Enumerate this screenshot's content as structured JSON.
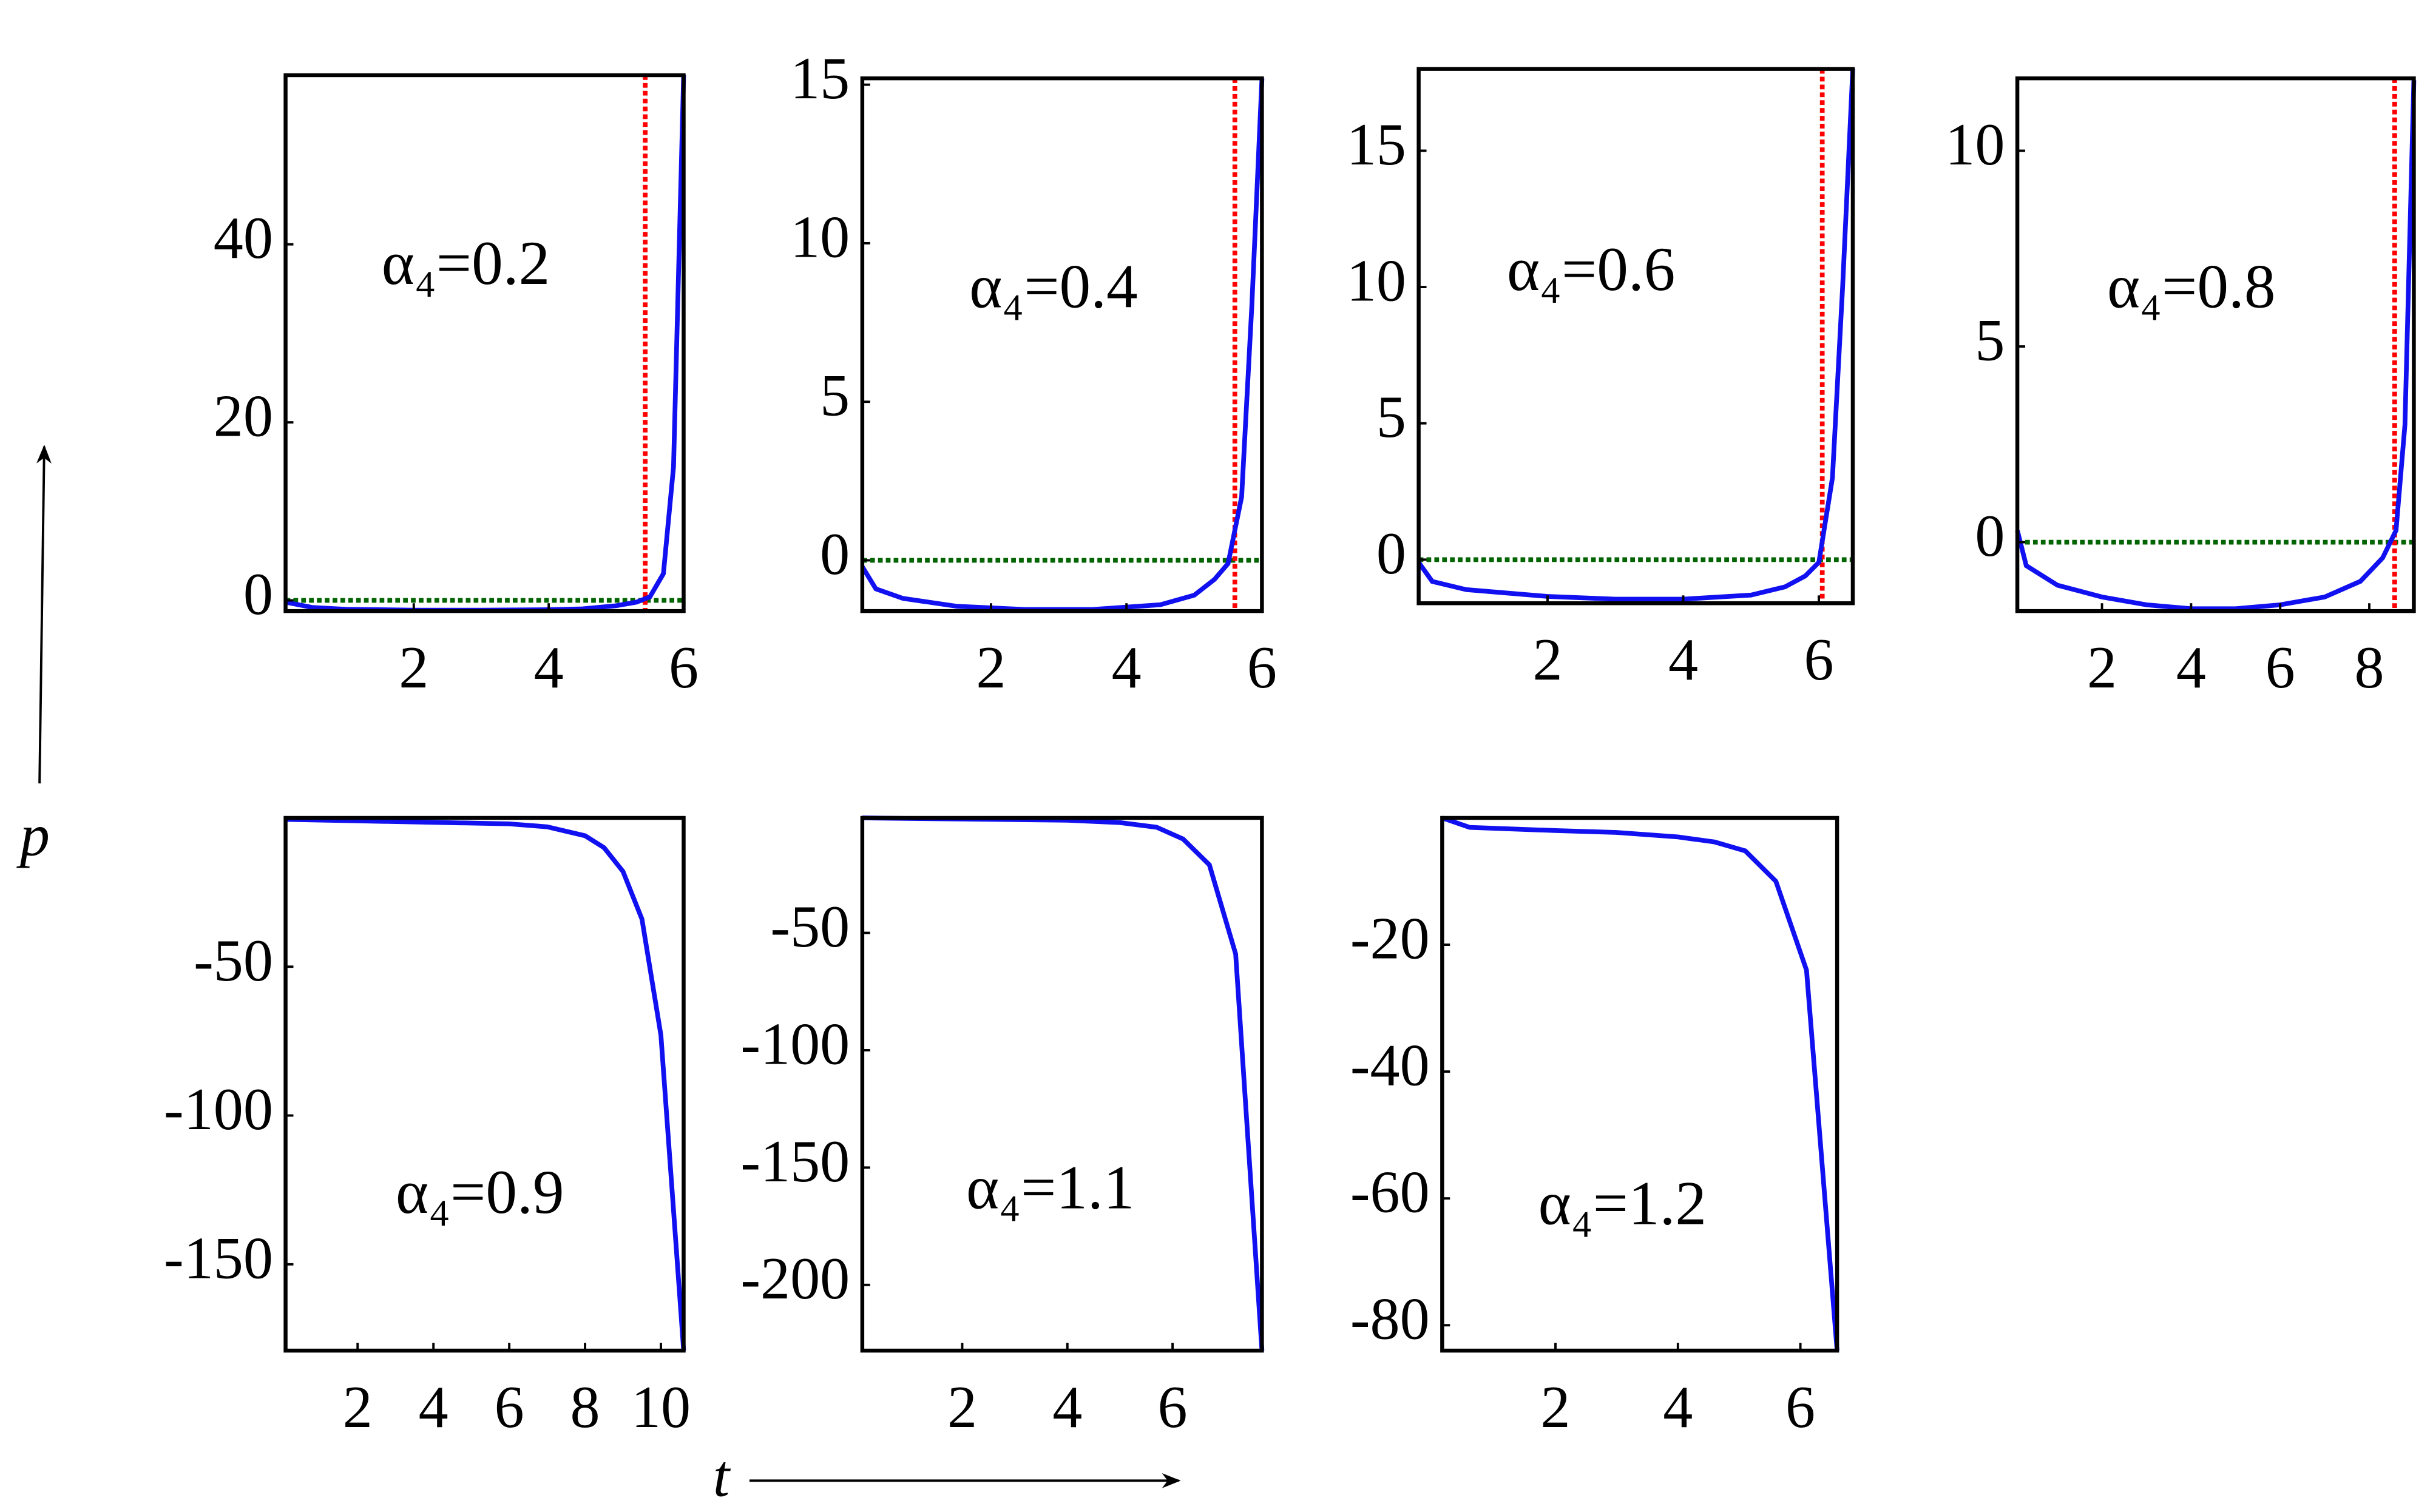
{
  "x_label": "t",
  "y_label": "p",
  "chart_data": [
    {
      "type": "line",
      "annotation": "α₄=0.2",
      "xlim": [
        0.1,
        6
      ],
      "ylim": [
        -1.2,
        59
      ],
      "xticks": [
        2,
        4,
        6
      ],
      "yticks": [
        0,
        20,
        40
      ],
      "series": [
        {
          "color": "#1010f0",
          "x": [
            0.1,
            0.5,
            1,
            2,
            3,
            4,
            4.5,
            5,
            5.3,
            5.5,
            5.7,
            5.85,
            6
          ],
          "values": [
            -0.2,
            -0.8,
            -1,
            -1.1,
            -1.1,
            -1.05,
            -0.95,
            -0.6,
            -0.2,
            0.4,
            3,
            15,
            59
          ]
        }
      ],
      "vline": {
        "x": 5.43,
        "color": "#ff0000"
      },
      "hline": {
        "y": 0,
        "color": "#006400"
      }
    },
    {
      "type": "line",
      "annotation": "α₄=0.4",
      "xlim": [
        0.1,
        6
      ],
      "ylim": [
        -1.6,
        15.2
      ],
      "xticks": [
        2,
        4,
        6
      ],
      "yticks": [
        0,
        5,
        10,
        15
      ],
      "series": [
        {
          "color": "#1010f0",
          "x": [
            0.1,
            0.3,
            0.7,
            1.5,
            2.5,
            3.5,
            4.5,
            5,
            5.3,
            5.5,
            5.7,
            5.85,
            6
          ],
          "values": [
            -0.2,
            -0.9,
            -1.2,
            -1.45,
            -1.55,
            -1.55,
            -1.4,
            -1.1,
            -0.6,
            -0.1,
            2,
            8,
            15.2
          ]
        }
      ],
      "vline": {
        "x": 5.6,
        "color": "#ff0000"
      },
      "hline": {
        "y": 0,
        "color": "#006400"
      }
    },
    {
      "type": "line",
      "annotation": "α₄=0.6",
      "xlim": [
        0.1,
        6.5
      ],
      "ylim": [
        -1.6,
        18
      ],
      "xticks": [
        2,
        4,
        6
      ],
      "yticks": [
        0,
        5,
        10,
        15
      ],
      "series": [
        {
          "color": "#1010f0",
          "x": [
            0.1,
            0.3,
            0.8,
            2,
            3,
            4,
            5,
            5.5,
            5.8,
            6,
            6.2,
            6.35,
            6.5
          ],
          "values": [
            -0.1,
            -0.8,
            -1.1,
            -1.35,
            -1.45,
            -1.45,
            -1.3,
            -1,
            -0.6,
            -0.1,
            3,
            10,
            18
          ]
        }
      ],
      "vline": {
        "x": 6.05,
        "color": "#ff0000"
      },
      "hline": {
        "y": 0,
        "color": "#006400"
      }
    },
    {
      "type": "line",
      "annotation": "α₄=0.8",
      "xlim": [
        0.1,
        9
      ],
      "ylim": [
        -1.76,
        11.85
      ],
      "xticks": [
        2,
        4,
        6,
        8
      ],
      "yticks": [
        0,
        5,
        10
      ],
      "series": [
        {
          "color": "#1010f0",
          "x": [
            0.1,
            0.3,
            1,
            2,
            3,
            4,
            5,
            6,
            7,
            7.8,
            8.3,
            8.6,
            8.8,
            9
          ],
          "values": [
            0.3,
            -0.6,
            -1.1,
            -1.4,
            -1.6,
            -1.7,
            -1.7,
            -1.6,
            -1.4,
            -1,
            -0.4,
            0.3,
            3,
            11.8
          ]
        }
      ],
      "vline": {
        "x": 8.57,
        "color": "#ff0000"
      },
      "hline": {
        "y": 0,
        "color": "#006400"
      }
    },
    {
      "type": "line",
      "annotation": "α₄=0.9",
      "xlim": [
        0.1,
        10.6
      ],
      "ylim": [
        -179,
        0
      ],
      "xticks": [
        2,
        4,
        6,
        8,
        10
      ],
      "yticks": [
        -50,
        -100,
        -150
      ],
      "series": [
        {
          "color": "#1010f0",
          "x": [
            0.1,
            2,
            4,
            6,
            7,
            8,
            8.5,
            9,
            9.5,
            10,
            10.6
          ],
          "values": [
            -0.5,
            -1,
            -1.5,
            -2,
            -3,
            -6,
            -10,
            -18,
            -34,
            -73,
            -179
          ]
        }
      ]
    },
    {
      "type": "line",
      "annotation": "α₄=1.1",
      "xlim": [
        0.1,
        7.7
      ],
      "ylim": [
        -228,
        -1
      ],
      "xticks": [
        2,
        4,
        6
      ],
      "yticks": [
        -50,
        -100,
        -150,
        -200
      ],
      "series": [
        {
          "color": "#1010f0",
          "x": [
            0.1,
            2,
            4,
            5,
            5.7,
            6.2,
            6.7,
            7.2,
            7.7
          ],
          "values": [
            -1,
            -1.5,
            -2,
            -3,
            -5,
            -10,
            -21,
            -59,
            -228
          ]
        }
      ]
    },
    {
      "type": "line",
      "annotation": "α₄=1.2",
      "xlim": [
        0.15,
        6.6
      ],
      "ylim": [
        -84,
        0
      ],
      "xticks": [
        2,
        4,
        6
      ],
      "yticks": [
        -20,
        -40,
        -60,
        -80
      ],
      "series": [
        {
          "color": "#1010f0",
          "x": [
            0.15,
            0.6,
            2,
            3,
            4,
            4.6,
            5.1,
            5.6,
            6.1,
            6.6
          ],
          "values": [
            0,
            -1.5,
            -2,
            -2.3,
            -3,
            -3.8,
            -5.2,
            -10,
            -24,
            -84
          ]
        }
      ]
    }
  ]
}
